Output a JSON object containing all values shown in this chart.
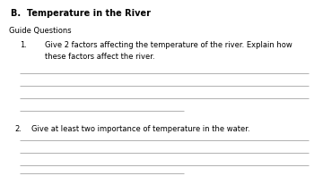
{
  "title": "B.  Temperature in the River",
  "guide_questions_label": "Guide Questions",
  "q1_number": "1.",
  "q1_indent": "        ",
  "q1_text": "Give 2 factors affecting the temperature of the river. Explain how\nthese factors affect the river.",
  "q1_lines": 4,
  "q2_number": "2.",
  "q2_text": "Give at least two importance of temperature in the water.",
  "q2_lines": 4,
  "bg_color": "#ffffff",
  "text_color": "#000000",
  "line_color": "#b0b0b0",
  "title_fontsize": 7.0,
  "body_fontsize": 6.0,
  "line_width": 0.7,
  "fig_width": 3.5,
  "fig_height": 1.97,
  "dpi": 100
}
